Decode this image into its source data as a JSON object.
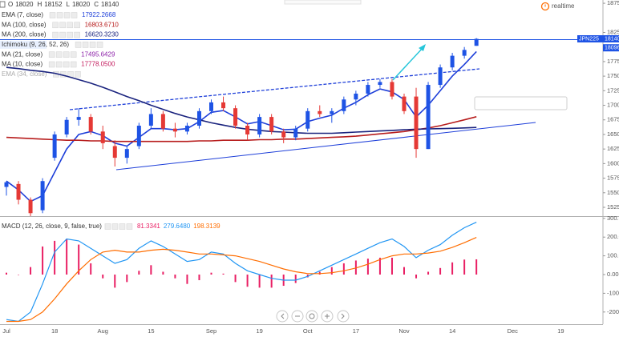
{
  "chart_data": [
    {
      "type": "candlestick",
      "header": [
        {
          "label": "O",
          "value": 18020
        },
        {
          "label": "H",
          "value": 18152
        },
        {
          "label": "L",
          "value": 18020
        },
        {
          "label": "C",
          "value": 18140
        }
      ],
      "categories": [
        "Jul",
        null,
        null,
        null,
        "18",
        null,
        null,
        null,
        "Aug",
        null,
        null,
        null,
        "15",
        null,
        null,
        null,
        null,
        "Sep",
        null,
        null,
        null,
        "19",
        null,
        null,
        null,
        "Oct",
        null,
        null,
        null,
        "17",
        null,
        null,
        null,
        "Nov",
        null,
        null,
        null,
        "14",
        null,
        null,
        null,
        null,
        "Dec",
        null,
        null,
        null,
        "19"
      ],
      "open": [
        15600,
        15650,
        15380,
        15200,
        16100,
        16500,
        16750,
        16800,
        16550,
        16300,
        16100,
        16300,
        16650,
        16850,
        16600,
        16550,
        16650,
        16900,
        17050,
        16950,
        16650,
        16500,
        16800,
        16550,
        16450,
        16600,
        16900,
        16850,
        16900,
        17100,
        17200,
        17350,
        17400,
        17150,
        17150,
        16250,
        17350,
        17650,
        17850,
        18020,
        null,
        null,
        null,
        null,
        null,
        null,
        null
      ],
      "high": [
        15700,
        15700,
        15420,
        15750,
        16550,
        16800,
        16950,
        16850,
        16650,
        16400,
        16300,
        16700,
        16950,
        16900,
        16700,
        16700,
        16950,
        17100,
        17150,
        17000,
        16700,
        16850,
        16850,
        16600,
        16650,
        16950,
        17000,
        16950,
        17150,
        17250,
        17400,
        17450,
        17450,
        17200,
        17300,
        17400,
        17700,
        17900,
        18000,
        18152,
        null,
        null,
        null,
        null,
        null,
        null,
        null
      ],
      "low": [
        15450,
        15300,
        15100,
        15150,
        16050,
        16450,
        16650,
        16500,
        16250,
        15950,
        16000,
        16250,
        16600,
        16550,
        16450,
        16500,
        16600,
        16850,
        16900,
        16600,
        16400,
        16450,
        16500,
        16350,
        16400,
        16550,
        16800,
        16700,
        16850,
        17000,
        17150,
        17300,
        17100,
        16850,
        16100,
        16250,
        17300,
        17600,
        17800,
        18020,
        null,
        null,
        null,
        null,
        null,
        null,
        null
      ],
      "close": [
        15680,
        15380,
        15150,
        15700,
        16500,
        16750,
        16800,
        16550,
        16350,
        16100,
        16250,
        16650,
        16850,
        16600,
        16550,
        16650,
        16900,
        17050,
        16950,
        16650,
        16500,
        16800,
        16550,
        16450,
        16600,
        16900,
        16850,
        16900,
        17100,
        17200,
        17350,
        17400,
        17150,
        16900,
        16250,
        17350,
        17650,
        17850,
        17950,
        18140,
        null,
        null,
        null,
        null,
        null,
        null,
        null
      ],
      "up_color": "#1e53e5",
      "down_color": "#e53935",
      "series": [
        {
          "name": "EMA (7, close)",
          "legend_value": "17922.2668",
          "color": "#1e3fd9",
          "values": [
            15700,
            15550,
            15350,
            15450,
            15850,
            16250,
            16500,
            16550,
            16480,
            16350,
            16300,
            16450,
            16600,
            16600,
            16580,
            16600,
            16720,
            16880,
            16910,
            16800,
            16680,
            16720,
            16650,
            16580,
            16590,
            16720,
            16780,
            16830,
            16950,
            17050,
            17180,
            17280,
            17230,
            17100,
            16800,
            17000,
            17250,
            17500,
            17700,
            17922.2668,
            null,
            null,
            null,
            null,
            null,
            null,
            null
          ]
        },
        {
          "name": "MA (100, close)",
          "legend_value": "16803.6710",
          "color": "#b71c1c",
          "values": [
            16450,
            16440,
            16430,
            16420,
            16410,
            16400,
            16400,
            16390,
            16390,
            16380,
            16380,
            16380,
            16380,
            16380,
            16380,
            16380,
            16390,
            16390,
            16400,
            16400,
            16400,
            16410,
            16410,
            16420,
            16420,
            16430,
            16440,
            16450,
            16460,
            16470,
            16490,
            16510,
            16530,
            16550,
            16580,
            16610,
            16650,
            16700,
            16750,
            16803.671,
            null,
            null,
            null,
            null,
            null,
            null,
            null
          ]
        },
        {
          "name": "MA (200, close)",
          "legend_value": "16620.3230",
          "color": "#1a237e",
          "values": [
            17650,
            17630,
            17600,
            17580,
            17550,
            17500,
            17440,
            17380,
            17310,
            17230,
            17150,
            17080,
            17000,
            16930,
            16860,
            16800,
            16750,
            16700,
            16660,
            16620,
            16590,
            16570,
            16550,
            16540,
            16530,
            16520,
            16520,
            16520,
            16530,
            16540,
            16550,
            16560,
            16570,
            16580,
            16590,
            16595,
            16600,
            16605,
            16612,
            16620.323,
            null,
            null,
            null,
            null,
            null,
            null,
            null
          ]
        }
      ],
      "indicators": [
        {
          "name": "Ichimoku (9, 26, 52, 26)"
        },
        {
          "name": "MA (21, close)",
          "legend_value": "17495.6429",
          "color": "#8e24aa"
        },
        {
          "name": "MA (10, close)",
          "legend_value": "17778.0500",
          "color": "#c2185b"
        },
        {
          "name": "EMA (34, close)"
        }
      ],
      "price_labels": [
        {
          "label": "JPN225",
          "value": 18140
        },
        {
          "value": 18096
        }
      ],
      "status": "realtime",
      "ylim": [
        15099,
        18806
      ],
      "yticks": [
        15250,
        15500,
        15750,
        16000,
        16250,
        16500,
        16750,
        17000,
        17250,
        17500,
        17750,
        18250,
        18750
      ]
    },
    {
      "type": "line",
      "title": "MACD (12, 26, close, 9, false, true)",
      "series": [
        {
          "name": "Histogram",
          "style": "bar",
          "legend_value": "81.3341",
          "color": "#e91e63",
          "values": [
            10,
            0,
            40,
            150,
            180,
            190,
            160,
            60,
            -20,
            -70,
            -40,
            20,
            50,
            15,
            -20,
            -50,
            -30,
            10,
            5,
            -40,
            -65,
            -70,
            -70,
            -60,
            -45,
            -15,
            15,
            40,
            60,
            75,
            85,
            90,
            90,
            40,
            -20,
            15,
            35,
            65,
            80,
            81.3341,
            null,
            null,
            null,
            null,
            null,
            null,
            null
          ]
        },
        {
          "name": "MACD",
          "style": "line",
          "legend_value": "279.6480",
          "color": "#2196f3",
          "values": [
            -240,
            -250,
            -200,
            -50,
            120,
            190,
            180,
            140,
            100,
            60,
            80,
            140,
            180,
            150,
            110,
            70,
            80,
            120,
            110,
            60,
            20,
            0,
            -20,
            -30,
            -30,
            -10,
            20,
            50,
            80,
            110,
            140,
            170,
            190,
            150,
            90,
            130,
            160,
            210,
            250,
            279.648,
            null,
            null,
            null,
            null,
            null,
            null,
            null
          ]
        },
        {
          "name": "Signal",
          "style": "line",
          "legend_value": "198.3139",
          "color": "#ff6d00",
          "values": [
            -250,
            -250,
            -240,
            -200,
            -130,
            -50,
            20,
            80,
            120,
            130,
            120,
            120,
            130,
            135,
            130,
            120,
            110,
            110,
            105,
            100,
            85,
            70,
            50,
            30,
            15,
            5,
            5,
            10,
            20,
            35,
            55,
            80,
            100,
            110,
            110,
            115,
            125,
            145,
            170,
            198.3139,
            null,
            null,
            null,
            null,
            null,
            null,
            null
          ]
        }
      ],
      "ylim": [
        -265,
        312
      ],
      "yticks": [
        {
          "value": -200,
          "label": "-200.0000"
        },
        {
          "value": -100,
          "label": "-100.0000"
        },
        {
          "value": 0,
          "label": "0.0000"
        },
        {
          "value": 100,
          "label": "100.0000"
        },
        {
          "value": 200,
          "label": "200.0000"
        },
        {
          "value": 300,
          "label": "300.0000"
        }
      ]
    }
  ]
}
